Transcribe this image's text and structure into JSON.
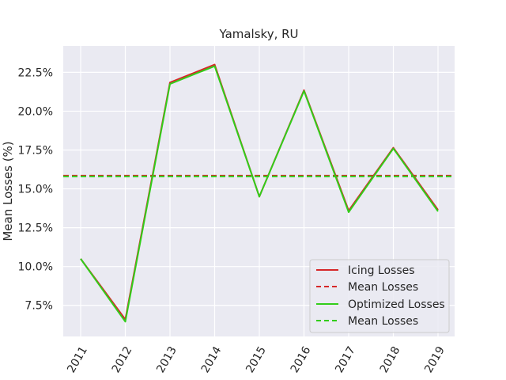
{
  "chart_data": {
    "type": "line",
    "title": "Yamalsky, RU",
    "xlabel": "",
    "ylabel": "Mean Losses (%)",
    "categories": [
      "2011",
      "2012",
      "2013",
      "2014",
      "2015",
      "2016",
      "2017",
      "2018",
      "2019"
    ],
    "ylim": [
      5.5,
      24.2
    ],
    "yticks": [
      7.5,
      10.0,
      12.5,
      15.0,
      17.5,
      20.0,
      22.5
    ],
    "ytick_labels": [
      "7.5%",
      "10.0%",
      "12.5%",
      "15.0%",
      "17.5%",
      "20.0%",
      "22.5%"
    ],
    "grid": true,
    "background": "#eaeaf2",
    "legend_position": "lower right",
    "series": [
      {
        "name": "Icing Losses",
        "style": "solid",
        "color": "#d62728",
        "values": [
          10.5,
          6.6,
          21.85,
          23.0,
          14.5,
          21.35,
          13.6,
          17.65,
          13.65
        ]
      },
      {
        "name": "Mean Losses",
        "style": "dashed",
        "color": "#d62728",
        "constant": 15.85
      },
      {
        "name": "Optimized Losses",
        "style": "solid",
        "color": "#32cd1a",
        "values": [
          10.5,
          6.45,
          21.75,
          22.9,
          14.5,
          21.3,
          13.5,
          17.6,
          13.55
        ]
      },
      {
        "name": "Mean Losses",
        "style": "dashed",
        "color": "#32cd1a",
        "constant": 15.8
      }
    ]
  }
}
